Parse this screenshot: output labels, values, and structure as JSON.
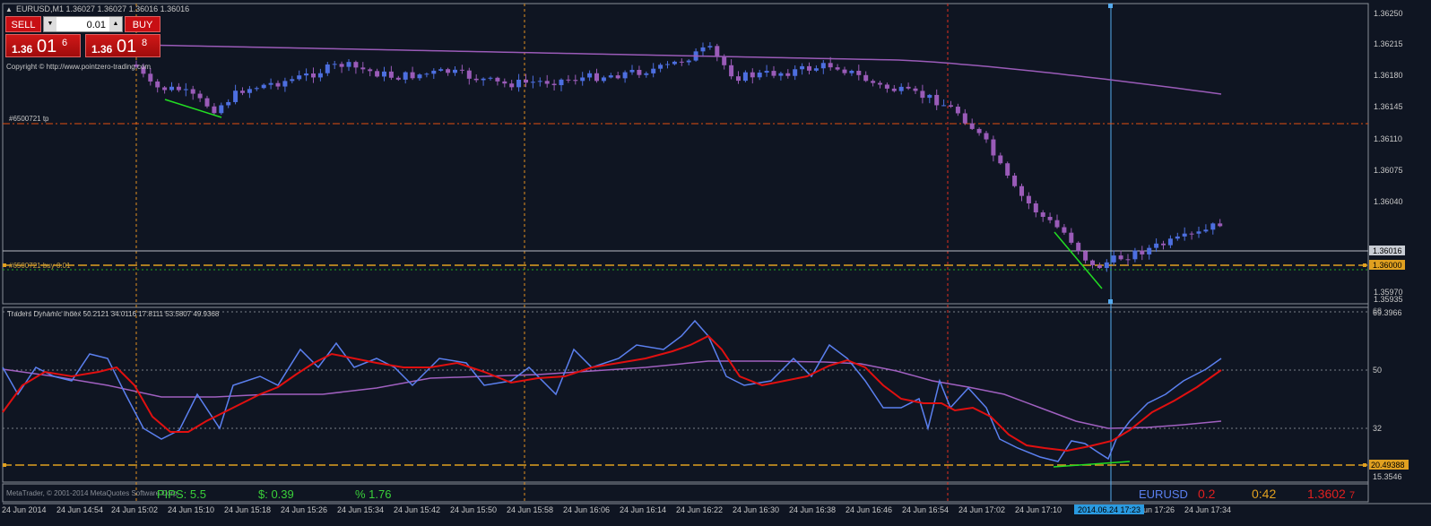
{
  "symbol_header": "EURUSD,M1  1.36027 1.36027 1.36016 1.36016",
  "copyright": "Copyright © http://www.pointzero-trading.com",
  "trade_panel": {
    "sell_label": "SELL",
    "buy_label": "BUY",
    "lot": "0.01",
    "sell_price": {
      "prefix": "1.36",
      "big": "01",
      "sup": "6"
    },
    "buy_price": {
      "prefix": "1.36",
      "big": "01",
      "sup": "8"
    }
  },
  "order_labels": {
    "tp": "#6500721 tp",
    "buy": "#6500721 buy 0.01"
  },
  "price_axis": {
    "ticks": [
      "1.36250",
      "1.36215",
      "1.36180",
      "1.36145",
      "1.36110",
      "1.36075",
      "1.36040",
      "1.35970",
      "1.35935"
    ],
    "bid_label": "1.36016",
    "entry_label": "1.36000"
  },
  "indicator": {
    "header": "Traders Dynamic Index 50.2121 34.0116 17.8111 53.5807 49.9368",
    "ticks": [
      "68",
      "50",
      "32",
      "15.3546"
    ],
    "top_value": "69.3966",
    "level_label": "20.49388"
  },
  "time_axis": {
    "labels": [
      "24 Jun 2014",
      "24 Jun 14:54",
      "24 Jun 15:02",
      "24 Jun 15:10",
      "24 Jun 15:18",
      "24 Jun 15:26",
      "24 Jun 15:34",
      "24 Jun 15:42",
      "24 Jun 15:50",
      "24 Jun 15:58",
      "24 Jun 16:06",
      "24 Jun 16:14",
      "24 Jun 16:22",
      "24 Jun 16:30",
      "24 Jun 16:38",
      "24 Jun 16:46",
      "24 Jun 16:54",
      "24 Jun 17:02",
      "24 Jun 17:10",
      "24 Jun 17:26",
      "24 Jun 17:34"
    ],
    "crosshair_time": "2014.06.24 17:23"
  },
  "footer": {
    "left_text": "MetaTrader, © 2001-2014 MetaQuotes Software Corp.",
    "pips": "PIPS: 5.5",
    "profit": "$: 0.39",
    "percent": "% 1.76",
    "symbol": "EURUSD",
    "spread": "0.2",
    "timer": "0:42",
    "price": "1.3602",
    "price_sup": "7"
  },
  "colors": {
    "bull_candle": "#4d6fe0",
    "bear_candle": "#9a5bb8",
    "ma_line": "#9a5bb8",
    "tdi_blue": "#5b80f0",
    "tdi_red": "#e01010",
    "tdi_purple": "#a060c0",
    "divergence": "#22dd22",
    "tp_line": "#e05010",
    "entry_line": "#e0a020",
    "crosshair": "#55aaee"
  }
}
